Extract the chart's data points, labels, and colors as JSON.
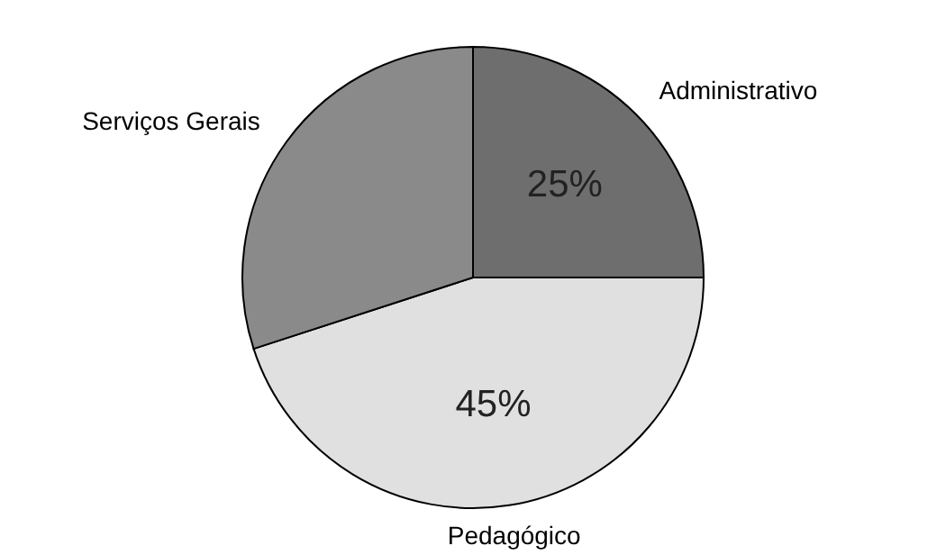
{
  "chart_data": {
    "type": "pie",
    "categories": [
      "Administrativo",
      "Pedagógico",
      "Serviços Gerais"
    ],
    "values": [
      25,
      45,
      30
    ],
    "colors": [
      "#6e6e6e",
      "#e0e0e0",
      "#8a8a8a"
    ],
    "value_labels": [
      "25%",
      "45%",
      null
    ]
  }
}
